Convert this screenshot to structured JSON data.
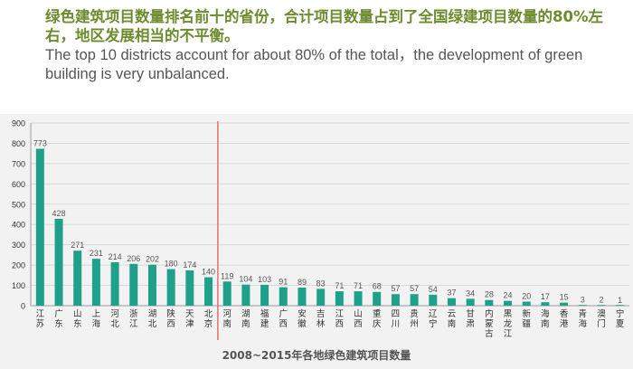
{
  "header": {
    "title_cn": "绿色建筑项目数量排名前十的省份，合计项目数量占到了全国绿建项目数量的80%左右，地区发展相当的不平衡。",
    "title_en": "The top 10 districts account for about 80% of the total，the development of green building is very unbalanced."
  },
  "colors": {
    "bar": "#1fa08a",
    "divider": "#e8706d",
    "axis": "#999999",
    "grid": "#d9d9d9"
  },
  "chart_data": {
    "type": "bar",
    "title": "2008~2015年各地绿色建筑项目数量",
    "xlabel": "2008~2015年各地绿色建筑项目数量",
    "ylabel": "",
    "ylim": [
      0,
      900
    ],
    "yticks": [
      "0",
      "100",
      "200",
      "300",
      "400",
      "500",
      "600",
      "700",
      "800",
      "900"
    ],
    "categories": [
      "江苏",
      "广东",
      "山东",
      "上海",
      "河北",
      "浙江",
      "湖北",
      "陕西",
      "天津",
      "北京",
      "河南",
      "湖南",
      "福建",
      "广西",
      "安徽",
      "吉林",
      "江西",
      "山西",
      "重庆",
      "四川",
      "贵州",
      "辽宁",
      "云南",
      "甘肃",
      "内蒙古",
      "黑龙江",
      "新疆",
      "海南",
      "香港",
      "青海",
      "澳门",
      "宁夏"
    ],
    "values": [
      773,
      428,
      271,
      231,
      214,
      206,
      202,
      180,
      174,
      140,
      119,
      104,
      103,
      91,
      89,
      83,
      71,
      71,
      68,
      57,
      57,
      54,
      37,
      34,
      28,
      24,
      20,
      17,
      15,
      3,
      2,
      1
    ],
    "top_n_divider": 10,
    "grid": true
  }
}
